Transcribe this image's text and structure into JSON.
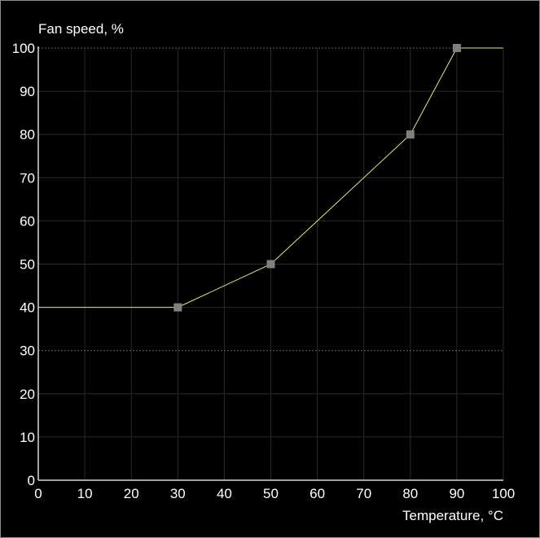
{
  "chart_data": {
    "type": "line",
    "ylabel": "Fan speed, %",
    "xlabel": "Temperature, °C",
    "xlim": [
      0,
      100
    ],
    "ylim": [
      0,
      100
    ],
    "x_ticks": [
      "0",
      "10",
      "20",
      "30",
      "40",
      "50",
      "60",
      "70",
      "80",
      "90",
      "100"
    ],
    "y_ticks": [
      "0",
      "10",
      "20",
      "30",
      "40",
      "50",
      "60",
      "70",
      "80",
      "90",
      "100"
    ],
    "grid": true,
    "highlight_gridlines_y": [
      30,
      100
    ],
    "series": [
      {
        "points": [
          {
            "x": 0,
            "y": 40
          },
          {
            "x": 30,
            "y": 40
          },
          {
            "x": 50,
            "y": 50
          },
          {
            "x": 80,
            "y": 80
          },
          {
            "x": 90,
            "y": 100
          },
          {
            "x": 100,
            "y": 100
          }
        ],
        "control_points": [
          {
            "x": 30,
            "y": 40
          },
          {
            "x": 50,
            "y": 50
          },
          {
            "x": 80,
            "y": 80
          },
          {
            "x": 90,
            "y": 100
          }
        ],
        "color": "#e6e685",
        "marker_color": "#808080"
      }
    ],
    "colors": {
      "background": "#000000",
      "grid": "#2a2a2a",
      "highlight_grid": "#6a6a4a",
      "axis": "#d8d8d8",
      "text": "#ffffff"
    }
  }
}
